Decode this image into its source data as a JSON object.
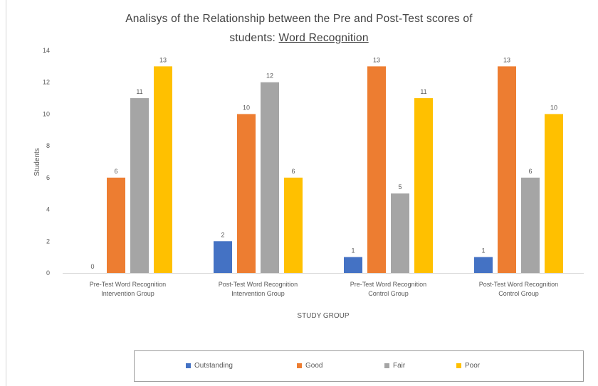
{
  "chart_data": {
    "type": "bar",
    "title_line1": "Analisys of the Relationship between the Pre and Post-Test scores of",
    "title_line2_prefix": "students: ",
    "title_line2_underlined": "Word Recognition",
    "xlabel": "STUDY GROUP",
    "ylabel": "Students",
    "ylim": [
      0,
      14
    ],
    "yticks": [
      0,
      2,
      4,
      6,
      8,
      10,
      12,
      14
    ],
    "categories": [
      [
        "Pre-Test Word Recognition",
        "Intervention Group"
      ],
      [
        "Post-Test Word Recognition",
        "Intervention Group"
      ],
      [
        "Pre-Test Word Recognition",
        "Control  Group"
      ],
      [
        "Post-Test Word Recognition",
        "Control Group"
      ]
    ],
    "series": [
      {
        "name": "Outstanding",
        "color": "#4472c4",
        "values": [
          0,
          2,
          1,
          1
        ]
      },
      {
        "name": "Good",
        "color": "#ed7d31",
        "values": [
          6,
          10,
          13,
          13
        ]
      },
      {
        "name": "Fair",
        "color": "#a5a5a5",
        "values": [
          11,
          12,
          5,
          6
        ]
      },
      {
        "name": "Poor",
        "color": "#ffc000",
        "values": [
          13,
          6,
          11,
          10
        ]
      }
    ],
    "grid": false,
    "legend_position": "bottom"
  }
}
